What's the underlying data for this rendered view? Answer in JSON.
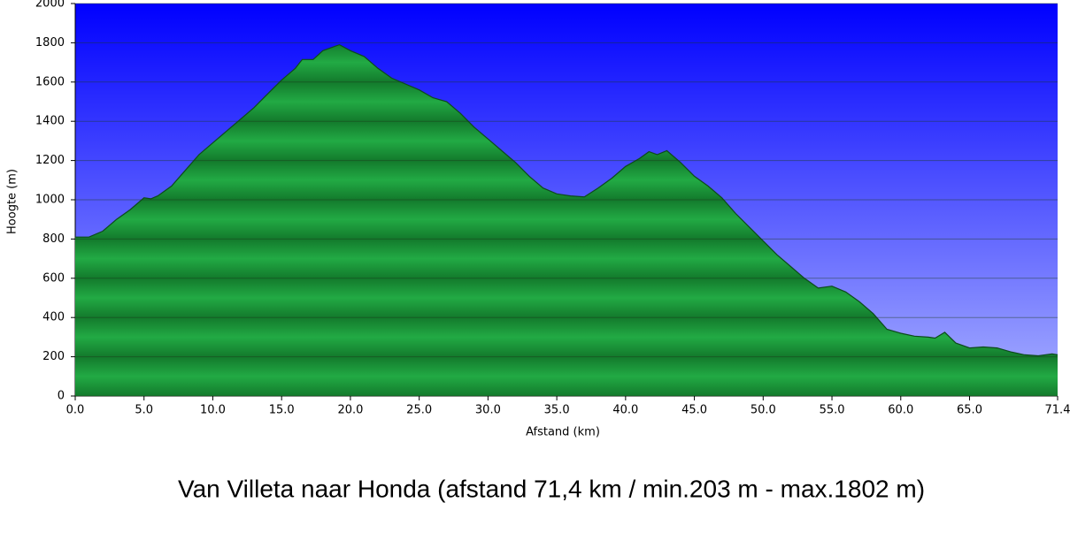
{
  "chart_data": {
    "type": "area",
    "title": "Van  Villeta  naar  Honda    (afstand 71,4 km  /  min.203 m - max.1802 m)",
    "x_label": "Afstand   (km)",
    "y_label": "Hoogte (m)",
    "x": [
      0,
      1,
      2,
      3,
      4,
      5,
      5.5,
      6,
      7,
      8,
      9,
      10,
      11,
      12,
      13,
      14,
      15,
      16,
      16.5,
      17.3,
      18,
      19.2,
      20,
      21,
      22,
      23,
      24,
      25,
      26,
      27,
      28,
      29,
      30,
      31,
      32,
      33,
      34,
      35,
      36,
      37,
      38,
      39,
      40,
      41,
      41.7,
      42.3,
      43,
      44,
      45,
      46,
      47,
      48,
      49,
      50,
      51,
      52,
      53,
      54,
      55,
      56,
      57,
      58,
      59,
      60,
      61,
      62,
      62.5,
      63.2,
      64,
      65,
      66,
      67,
      68,
      69,
      70,
      71,
      71.4
    ],
    "values": [
      810,
      810,
      840,
      900,
      950,
      1010,
      1005,
      1020,
      1070,
      1150,
      1230,
      1290,
      1350,
      1410,
      1470,
      1540,
      1610,
      1670,
      1715,
      1715,
      1760,
      1790,
      1760,
      1730,
      1670,
      1620,
      1590,
      1560,
      1520,
      1500,
      1440,
      1370,
      1310,
      1250,
      1190,
      1120,
      1060,
      1030,
      1020,
      1015,
      1060,
      1110,
      1170,
      1210,
      1245,
      1230,
      1250,
      1190,
      1120,
      1070,
      1010,
      930,
      860,
      790,
      720,
      660,
      600,
      550,
      560,
      530,
      480,
      420,
      340,
      320,
      305,
      300,
      295,
      325,
      270,
      245,
      250,
      245,
      225,
      210,
      205,
      215,
      210
    ],
    "color": "#22aa44",
    "xlim": [
      0,
      71.4
    ],
    "xticks": [
      {
        "value": 0,
        "label": "0.0"
      },
      {
        "value": 5,
        "label": "5.0"
      },
      {
        "value": 10,
        "label": "10.0"
      },
      {
        "value": 15,
        "label": "15.0"
      },
      {
        "value": 20,
        "label": "20.0"
      },
      {
        "value": 25,
        "label": "25.0"
      },
      {
        "value": 30,
        "label": "30.0"
      },
      {
        "value": 35,
        "label": "35.0"
      },
      {
        "value": 40,
        "label": "40.0"
      },
      {
        "value": 45,
        "label": "45.0"
      },
      {
        "value": 50,
        "label": "50.0"
      },
      {
        "value": 55,
        "label": "55.0"
      },
      {
        "value": 60,
        "label": "60.0"
      },
      {
        "value": 65,
        "label": "65.0"
      },
      71.4
    ],
    "ylim": [
      0,
      2000
    ],
    "yticks": [
      0,
      200,
      400,
      600,
      800,
      1000,
      1200,
      1400,
      1600,
      1800,
      2000
    ],
    "grid": true
  }
}
